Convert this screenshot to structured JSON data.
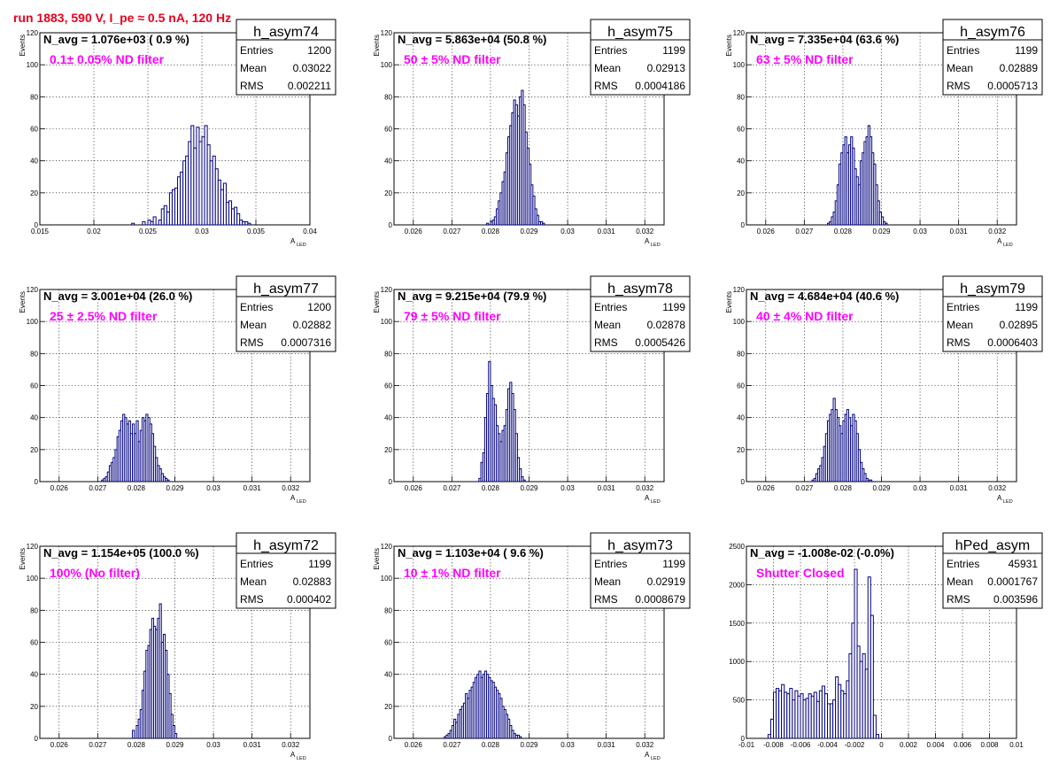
{
  "page_title": "run 1883,   590 V, I_pe ≈ 0.5 nA, 120 Hz",
  "colors": {
    "title": "#e8001e",
    "histogram": "#000080",
    "annotation": "#ff00ff",
    "grid": "#000000"
  },
  "stats_labels": {
    "entries": "Entries",
    "mean": "Mean",
    "rms": "RMS"
  },
  "chart_data": [
    {
      "type": "histogram",
      "name": "h_asym74",
      "ylabel": "Events",
      "xlabel": "A",
      "xlabel_sub": "LED",
      "xlim": [
        0.015,
        0.04
      ],
      "ylim": [
        0,
        120
      ],
      "xticks": [
        0.015,
        0.02,
        0.025,
        0.03,
        0.035,
        0.04
      ],
      "xtick_labels": [
        "0.015",
        "0.02",
        "0.025",
        "0.03",
        "0.035",
        "0.04"
      ],
      "yticks": [
        0,
        20,
        40,
        60,
        80,
        100,
        120
      ],
      "grid": true,
      "navg": "N_avg = 1.076e+03 ( 0.9 %)",
      "annotation": "0.1± 0.05% ND filter",
      "stats": {
        "entries": "1200",
        "mean": "0.03022",
        "rms": "0.002211"
      },
      "bin_start": 0.0235,
      "bin_width": 0.00025,
      "counts": [
        1,
        0,
        0,
        0,
        2,
        0,
        3,
        2,
        5,
        0,
        3,
        10,
        12,
        8,
        20,
        22,
        23,
        30,
        33,
        40,
        43,
        52,
        62,
        48,
        61,
        52,
        55,
        62,
        50,
        40,
        43,
        35,
        28,
        22,
        26,
        14,
        15,
        10,
        11,
        7,
        3,
        2,
        2,
        1
      ]
    },
    {
      "type": "histogram",
      "name": "h_asym75",
      "ylabel": "Events",
      "xlabel": "A",
      "xlabel_sub": "LED",
      "xlim": [
        0.0255,
        0.0325
      ],
      "ylim": [
        0,
        120
      ],
      "xticks": [
        0.026,
        0.027,
        0.028,
        0.029,
        0.03,
        0.031,
        0.032
      ],
      "xtick_labels": [
        "0.026",
        "0.027",
        "0.028",
        "0.029",
        "0.03",
        "0.031",
        "0.032"
      ],
      "yticks": [
        0,
        20,
        40,
        60,
        80,
        100,
        120
      ],
      "grid": true,
      "navg": "N_avg = 5.863e+04 (50.8 %)",
      "annotation": "50 ± 5% ND filter",
      "stats": {
        "entries": "1199",
        "mean": "0.02913",
        "rms": "0.0004186"
      },
      "bin_start": 0.0279,
      "bin_width": 5e-05,
      "counts": [
        1,
        0,
        2,
        3,
        5,
        10,
        15,
        20,
        27,
        33,
        45,
        55,
        62,
        70,
        78,
        75,
        68,
        80,
        84,
        75,
        58,
        48,
        38,
        25,
        18,
        10,
        6,
        2,
        2,
        1
      ]
    },
    {
      "type": "histogram",
      "name": "h_asym76",
      "ylabel": "Events",
      "xlabel": "A",
      "xlabel_sub": "LED",
      "xlim": [
        0.0255,
        0.0325
      ],
      "ylim": [
        0,
        120
      ],
      "xticks": [
        0.026,
        0.027,
        0.028,
        0.029,
        0.03,
        0.031,
        0.032
      ],
      "xtick_labels": [
        "0.026",
        "0.027",
        "0.028",
        "0.029",
        "0.03",
        "0.031",
        "0.032"
      ],
      "yticks": [
        0,
        20,
        40,
        60,
        80,
        100,
        120
      ],
      "grid": true,
      "navg": "N_avg = 7.335e+04 (63.6 %)",
      "annotation": "63 ± 5% ND filter",
      "stats": {
        "entries": "1199",
        "mean": "0.02889",
        "rms": "0.0005713"
      },
      "bin_start": 0.0276,
      "bin_width": 5e-05,
      "counts": [
        1,
        2,
        5,
        8,
        15,
        25,
        38,
        45,
        50,
        55,
        45,
        50,
        55,
        48,
        35,
        30,
        25,
        40,
        45,
        52,
        55,
        62,
        55,
        45,
        38,
        25,
        15,
        8,
        5,
        2,
        1
      ]
    },
    {
      "type": "histogram",
      "name": "h_asym77",
      "ylabel": "Events",
      "xlabel": "A",
      "xlabel_sub": "LED",
      "xlim": [
        0.0255,
        0.0325
      ],
      "ylim": [
        0,
        120
      ],
      "xticks": [
        0.026,
        0.027,
        0.028,
        0.029,
        0.03,
        0.031,
        0.032
      ],
      "xtick_labels": [
        "0.026",
        "0.027",
        "0.028",
        "0.029",
        "0.03",
        "0.031",
        "0.032"
      ],
      "yticks": [
        0,
        20,
        40,
        60,
        80,
        100,
        120
      ],
      "grid": true,
      "navg": "N_avg = 3.001e+04 (26.0 %)",
      "annotation": "25 ± 2.5% ND filter",
      "stats": {
        "entries": "1200",
        "mean": "0.02882",
        "rms": "0.0007316"
      },
      "bin_start": 0.0271,
      "bin_width": 5e-05,
      "counts": [
        1,
        2,
        3,
        6,
        10,
        12,
        15,
        20,
        28,
        32,
        38,
        42,
        40,
        36,
        38,
        30,
        36,
        30,
        38,
        25,
        32,
        40,
        38,
        42,
        40,
        36,
        30,
        22,
        15,
        10,
        8,
        5,
        3,
        2,
        1
      ]
    },
    {
      "type": "histogram",
      "name": "h_asym78",
      "ylabel": "Events",
      "xlabel": "A",
      "xlabel_sub": "LED",
      "xlim": [
        0.0255,
        0.0325
      ],
      "ylim": [
        0,
        120
      ],
      "xticks": [
        0.026,
        0.027,
        0.028,
        0.029,
        0.03,
        0.031,
        0.032
      ],
      "xtick_labels": [
        "0.026",
        "0.027",
        "0.028",
        "0.029",
        "0.03",
        "0.031",
        "0.032"
      ],
      "yticks": [
        0,
        20,
        40,
        60,
        80,
        100,
        120
      ],
      "grid": true,
      "navg": "N_avg = 9.215e+04 (79.9 %)",
      "annotation": "79 ± 5% ND filter",
      "stats": {
        "entries": "1199",
        "mean": "0.02878",
        "rms": "0.0005426"
      },
      "bin_start": 0.0277,
      "bin_width": 5e-05,
      "counts": [
        2,
        12,
        18,
        40,
        55,
        75,
        60,
        52,
        48,
        35,
        30,
        25,
        32,
        35,
        45,
        58,
        62,
        55,
        45,
        30,
        15,
        8,
        3,
        1
      ]
    },
    {
      "type": "histogram",
      "name": "h_asym79",
      "ylabel": "Events",
      "xlabel": "A",
      "xlabel_sub": "LED",
      "xlim": [
        0.0255,
        0.0325
      ],
      "ylim": [
        0,
        120
      ],
      "xticks": [
        0.026,
        0.027,
        0.028,
        0.029,
        0.03,
        0.031,
        0.032
      ],
      "xtick_labels": [
        "0.026",
        "0.027",
        "0.028",
        "0.029",
        "0.03",
        "0.031",
        "0.032"
      ],
      "yticks": [
        0,
        20,
        40,
        60,
        80,
        100,
        120
      ],
      "grid": true,
      "navg": "N_avg = 4.684e+04 (40.6 %)",
      "annotation": "40 ± 4% ND filter",
      "stats": {
        "entries": "1199",
        "mean": "0.02895",
        "rms": "0.0006403"
      },
      "bin_start": 0.0272,
      "bin_width": 5e-05,
      "counts": [
        1,
        2,
        5,
        8,
        10,
        15,
        22,
        30,
        38,
        42,
        45,
        52,
        45,
        40,
        35,
        30,
        38,
        42,
        45,
        40,
        35,
        42,
        38,
        30,
        20,
        12,
        8,
        5,
        2,
        1,
        1
      ]
    },
    {
      "type": "histogram",
      "name": "h_asym72",
      "ylabel": "Events",
      "xlabel": "A",
      "xlabel_sub": "LED",
      "xlim": [
        0.0255,
        0.0325
      ],
      "ylim": [
        0,
        120
      ],
      "xticks": [
        0.026,
        0.027,
        0.028,
        0.029,
        0.03,
        0.031,
        0.032
      ],
      "xtick_labels": [
        "0.026",
        "0.027",
        "0.028",
        "0.029",
        "0.03",
        "0.031",
        "0.032"
      ],
      "yticks": [
        0,
        20,
        40,
        60,
        80,
        100,
        120
      ],
      "grid": true,
      "navg": "N_avg = 1.154e+05 (100.0 %)",
      "annotation": "100% (No filter)",
      "stats": {
        "entries": "1199",
        "mean": "0.02883",
        "rms": "0.000402"
      },
      "bin_start": 0.0279,
      "bin_width": 5e-05,
      "counts": [
        5,
        0,
        8,
        12,
        18,
        30,
        42,
        55,
        58,
        68,
        75,
        70,
        68,
        75,
        84,
        60,
        65,
        55,
        40,
        28,
        15,
        8,
        3
      ]
    },
    {
      "type": "histogram",
      "name": "h_asym73",
      "ylabel": "Events",
      "xlabel": "A",
      "xlabel_sub": "LED",
      "xlim": [
        0.0255,
        0.0325
      ],
      "ylim": [
        0,
        120
      ],
      "xticks": [
        0.026,
        0.027,
        0.028,
        0.029,
        0.03,
        0.031,
        0.032
      ],
      "xtick_labels": [
        "0.026",
        "0.027",
        "0.028",
        "0.029",
        "0.03",
        "0.031",
        "0.032"
      ],
      "yticks": [
        0,
        20,
        40,
        60,
        80,
        100,
        120
      ],
      "grid": true,
      "navg": "N_avg = 1.103e+04 ( 9.6 %)",
      "annotation": "10 ± 1% ND filter",
      "stats": {
        "entries": "1199",
        "mean": "0.02919",
        "rms": "0.0008679"
      },
      "bin_start": 0.0268,
      "bin_width": 5e-05,
      "counts": [
        1,
        2,
        3,
        5,
        8,
        12,
        10,
        15,
        18,
        20,
        22,
        28,
        25,
        30,
        32,
        35,
        38,
        40,
        42,
        38,
        40,
        42,
        40,
        38,
        36,
        35,
        32,
        30,
        28,
        25,
        20,
        18,
        15,
        12,
        8,
        5,
        3,
        2,
        2,
        1
      ]
    },
    {
      "type": "histogram",
      "name": "hPed_asym",
      "ylabel": "",
      "xlabel": "",
      "xlabel_sub": "",
      "xlim": [
        -0.01,
        0.01
      ],
      "ylim": [
        0,
        2500
      ],
      "xticks": [
        -0.01,
        -0.008,
        -0.006,
        -0.004,
        -0.002,
        0,
        0.002,
        0.004,
        0.006,
        0.008,
        0.01
      ],
      "xtick_labels": [
        "-0.01",
        "-0.008",
        "-0.006",
        "-0.004",
        "-0.002",
        "0",
        "0.002",
        "0.004",
        "0.006",
        "0.008",
        "0.01"
      ],
      "yticks": [
        0,
        500,
        1000,
        1500,
        2000,
        2500
      ],
      "grid": true,
      "navg": "N_avg = -1.008e-02 (-0.0%)",
      "annotation": "Shutter Closed",
      "stats": {
        "entries": "45931",
        "mean": "0.0001767",
        "rms": "0.003596"
      },
      "bin_start": -0.0084,
      "bin_width": 0.0002,
      "counts": [
        50,
        250,
        600,
        650,
        620,
        700,
        600,
        580,
        650,
        500,
        620,
        550,
        580,
        500,
        520,
        580,
        550,
        600,
        480,
        620,
        680,
        580,
        450,
        450,
        500,
        800,
        700,
        620,
        580,
        750,
        1100,
        1500,
        2200,
        1200,
        1000,
        1100,
        900,
        2100,
        1600,
        300,
        50
      ]
    }
  ]
}
